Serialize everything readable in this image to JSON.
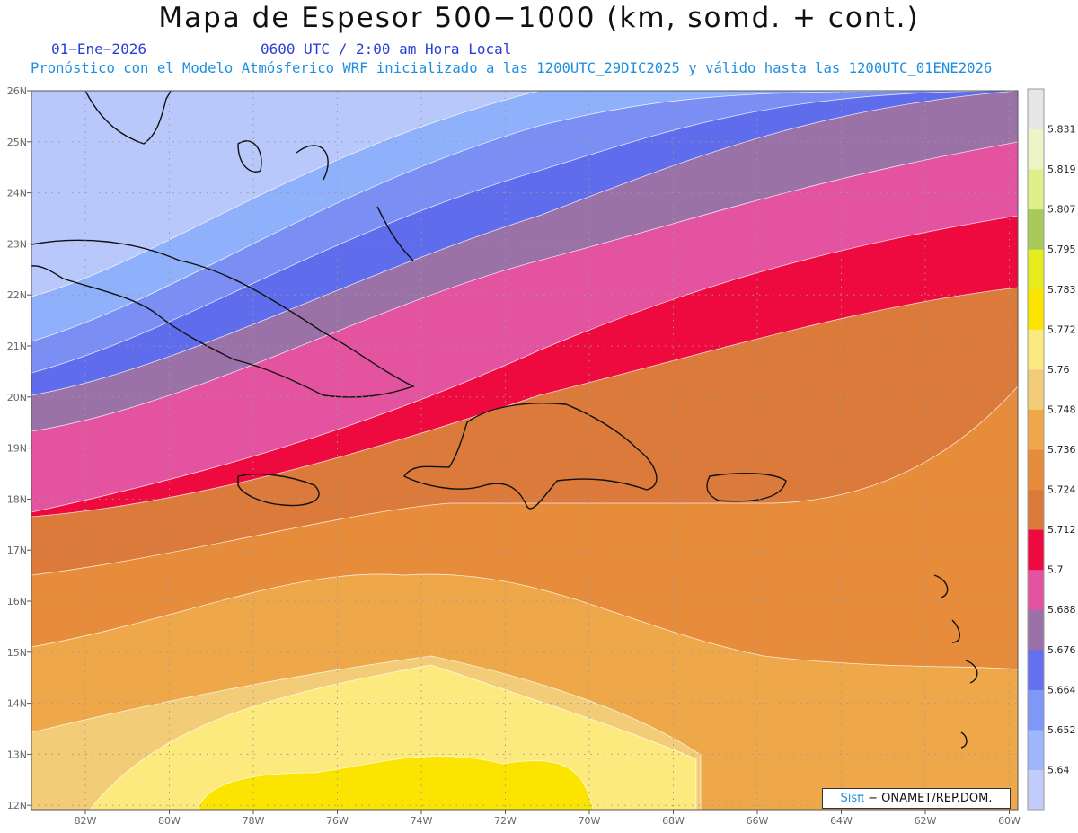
{
  "header": {
    "title": "Mapa de Espesor 500−1000 (km, somd. + cont.)",
    "date": "01−Ene−2026",
    "time": "0600 UTC / 2:00 am Hora Local",
    "model_note": "Pronóstico con el Modelo Atmósferico WRF inicializado a las 1200UTC_29DIC2025 y válido hasta las  1200UTC_01ENE2026"
  },
  "map": {
    "lat_labels": [
      "26N",
      "25N",
      "24N",
      "23N",
      "22N",
      "21N",
      "20N",
      "19N",
      "18N",
      "17N",
      "16N",
      "15N",
      "14N",
      "13N",
      "12N"
    ],
    "lon_labels": [
      "82W",
      "80W",
      "78W",
      "76W",
      "74W",
      "72W",
      "70W",
      "68W",
      "66W",
      "64W",
      "62W",
      "60W"
    ],
    "band_colors": [
      "#b8c8fb",
      "#8fb0fa",
      "#7a8ef4",
      "#5f6cec",
      "#9a72a8",
      "#e4539f",
      "#ee0a3e",
      "#db7a3a",
      "#e68c3a",
      "#eea84a",
      "#f2cc76",
      "#fdea7e",
      "#fbe500"
    ]
  },
  "legend": {
    "values": [
      "5.64",
      "5.652",
      "5.664",
      "5.676",
      "5.688",
      "5.7",
      "5.712",
      "5.724",
      "5.736",
      "5.748",
      "5.76",
      "5.772",
      "5.783",
      "5.795",
      "5.807",
      "5.819",
      "5.831"
    ],
    "colors": [
      "#c2ccfb",
      "#9eb6fb",
      "#7f97f7",
      "#6470f0",
      "#9a72a8",
      "#e4539f",
      "#ee0a3e",
      "#db7a3a",
      "#e68c3a",
      "#eea84a",
      "#f2cc76",
      "#fdea7e",
      "#fbe500",
      "#e6ec20",
      "#a9c95a",
      "#dff08a",
      "#eef4c8",
      "#e6e6e6"
    ]
  },
  "credit": {
    "brand": "Sisπ",
    "org": "− ONAMET/REP.DOM."
  }
}
